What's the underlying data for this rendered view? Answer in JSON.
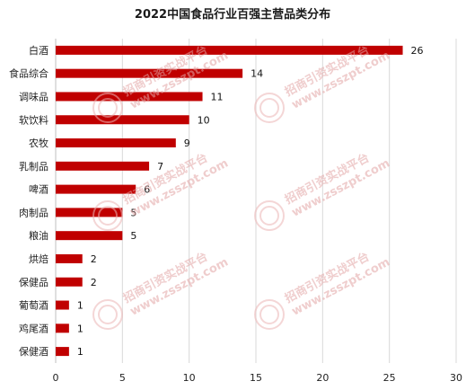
{
  "chart_data": {
    "type": "bar",
    "orientation": "horizontal",
    "title": "2022中国食品行业百强主营品类分布",
    "categories": [
      "白酒",
      "食品综合",
      "调味品",
      "软饮料",
      "农牧",
      "乳制品",
      "啤酒",
      "肉制品",
      "粮油",
      "烘焙",
      "保健品",
      "葡萄酒",
      "鸡尾酒",
      "保健酒"
    ],
    "values": [
      26,
      14,
      11,
      10,
      9,
      7,
      6,
      5,
      5,
      2,
      2,
      1,
      1,
      1
    ],
    "xlim": [
      0,
      30
    ],
    "xticks": [
      0,
      5,
      10,
      15,
      20,
      25,
      30
    ],
    "grid": "vertical",
    "legend": "none",
    "bar_color": "#c00000"
  },
  "watermark": {
    "text": "招商引资实战平台",
    "url": "www.zsszpt.com",
    "color": "#e8a0a0"
  }
}
